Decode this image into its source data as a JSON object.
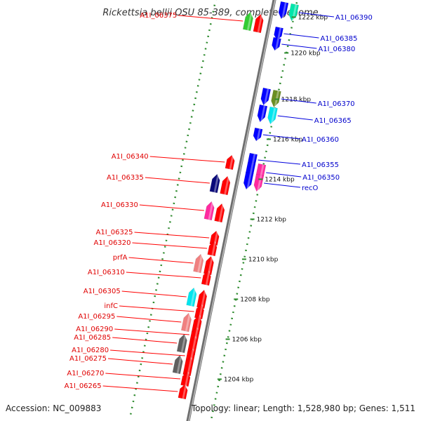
{
  "title": "Rickettsia bellii OSU 85-389, complete genome",
  "footer": {
    "accession": "Accession: NC_009883",
    "info": "Topology: linear; Length: 1,528,980 bp; Genes: 1,511"
  },
  "colors": {
    "forward": "#ff0000",
    "reverse": "#0000ff",
    "backbone": "#8c8c8c",
    "ruler": "#2e8b2e"
  },
  "kbp_ticks": [
    {
      "label": "1222 kbp",
      "t": 0.03
    },
    {
      "label": "1220 kbp",
      "t": 0.115
    },
    {
      "label": "1218 kbp",
      "t": 0.225
    },
    {
      "label": "1216 kbp",
      "t": 0.32
    },
    {
      "label": "1214 kbp",
      "t": 0.415
    },
    {
      "label": "1212 kbp",
      "t": 0.51
    },
    {
      "label": "1210 kbp",
      "t": 0.605
    },
    {
      "label": "1208 kbp",
      "t": 0.7
    },
    {
      "label": "1206 kbp",
      "t": 0.795
    },
    {
      "label": "1204 kbp",
      "t": 0.89
    }
  ],
  "genes_left": [
    {
      "label": "A1I_06375",
      "t": 0.06,
      "lane": "outer",
      "color": "#33cc33"
    },
    {
      "label": "A1I_06340",
      "t": 0.39,
      "lane": "inner",
      "color": "#ff0000"
    },
    {
      "label": "A1I_06335",
      "t": 0.445,
      "lane": "outer",
      "color": "#0a0a7a"
    },
    {
      "label": "A1I_06330",
      "t": 0.51,
      "lane": "outer",
      "color": "#ff2aa0"
    },
    {
      "label": "A1I_06325",
      "t": 0.57,
      "lane": "inner",
      "color": "#ff0000"
    },
    {
      "label": "A1I_06320",
      "t": 0.595,
      "lane": "inner",
      "color": "#ff0000"
    },
    {
      "label": "prfA",
      "t": 0.635,
      "lane": "outer",
      "color": "#f08080"
    },
    {
      "label": "A1I_06310",
      "t": 0.665,
      "lane": "inner",
      "color": "#ff0000"
    },
    {
      "label": "A1I_06305",
      "t": 0.715,
      "lane": "outer",
      "color": "#00e5ee"
    },
    {
      "label": "infC",
      "t": 0.745,
      "lane": "inner",
      "color": "#ff0000"
    },
    {
      "label": "A1I_06295",
      "t": 0.775,
      "lane": "outer",
      "color": "#f08080"
    },
    {
      "label": "A1I_06290",
      "t": 0.8,
      "lane": "inner",
      "color": "#ff0000"
    },
    {
      "label": "A1I_06285",
      "t": 0.825,
      "lane": "outer",
      "color": "#606060"
    },
    {
      "label": "A1I_06280",
      "t": 0.85,
      "lane": "inner",
      "color": "#ff0000"
    },
    {
      "label": "A1I_06275",
      "t": 0.875,
      "lane": "outer",
      "color": "#606060"
    },
    {
      "label": "A1I_06270",
      "t": 0.905,
      "lane": "inner",
      "color": "#ff0000"
    },
    {
      "label": "A1I_06265",
      "t": 0.935,
      "lane": "inner",
      "color": "#ff0000"
    }
  ],
  "genes_right": [
    {
      "label": "A1I_06390",
      "t": 0.02,
      "lane": "outer",
      "color": "#00e5aa"
    },
    {
      "label": "A1I_06385",
      "t": 0.075,
      "lane": "inner",
      "color": "#0000ff"
    },
    {
      "label": "A1I_06380",
      "t": 0.1,
      "lane": "inner",
      "color": "#0000ff"
    },
    {
      "label": "A1I_06370",
      "t": 0.225,
      "lane": "outer",
      "color": "#6b8e23"
    },
    {
      "label": "A1I_06365",
      "t": 0.265,
      "lane": "outer",
      "color": "#00e5ee"
    },
    {
      "label": "A1I_06360",
      "t": 0.315,
      "lane": "inner",
      "color": "#0000ff"
    },
    {
      "label": "A1I_06355",
      "t": 0.375,
      "lane": "inner",
      "color": "#0000ff"
    },
    {
      "label": "A1I_06350",
      "t": 0.4,
      "lane": "outer",
      "color": "#ff2aa0"
    },
    {
      "label": "recO",
      "t": 0.425,
      "lane": "outer",
      "color": "#ff2aa0"
    }
  ]
}
